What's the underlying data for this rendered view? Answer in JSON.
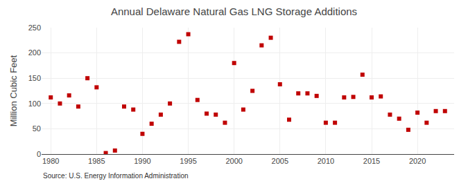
{
  "chart_data": {
    "type": "scatter",
    "title": "Annual Delaware Natural Gas LNG Storage Additions",
    "ylabel": "Million Cubic Feet",
    "annotations": [
      "Source: U.S. Energy Information Administration"
    ],
    "x": [
      1980,
      1981,
      1982,
      1983,
      1984,
      1985,
      1986,
      1987,
      1988,
      1989,
      1990,
      1991,
      1992,
      1993,
      1994,
      1995,
      1996,
      1997,
      1998,
      1999,
      2000,
      2001,
      2002,
      2003,
      2004,
      2005,
      2006,
      2007,
      2008,
      2009,
      2010,
      2011,
      2012,
      2013,
      2014,
      2015,
      2016,
      2017,
      2018,
      2019,
      2020,
      2021,
      2022,
      2023
    ],
    "values": [
      112,
      100,
      116,
      94,
      150,
      132,
      2,
      7,
      94,
      88,
      40,
      60,
      78,
      100,
      222,
      237,
      107,
      80,
      78,
      62,
      180,
      88,
      125,
      215,
      230,
      138,
      68,
      120,
      120,
      115,
      62,
      62,
      112,
      113,
      157,
      112,
      114,
      78,
      70,
      48,
      82,
      62,
      85,
      85
    ],
    "color": "#c00000",
    "marker": "square",
    "xlim": [
      1979,
      2024
    ],
    "xticks": [
      1980,
      1985,
      1990,
      1995,
      2000,
      2005,
      2010,
      2015,
      2020
    ],
    "ylim": [
      0,
      250
    ],
    "yticks": [
      0,
      50,
      100,
      150,
      200,
      250
    ],
    "grid": true
  }
}
